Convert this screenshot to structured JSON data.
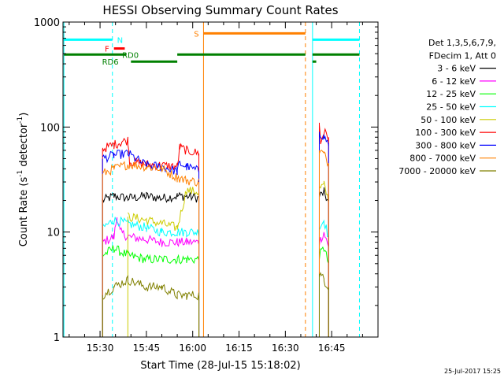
{
  "chart_data": {
    "type": "line",
    "title": "HESSI Observing Summary Count Rates",
    "xlabel": "Start Time (28-Jul-15 15:18:02)",
    "ylabel_main": "Count Rate (s",
    "ylabel_sup1": "-1",
    "ylabel_mid": " detector",
    "ylabel_sup2": "-1",
    "ylabel_end": ")",
    "yscale": "log",
    "ylim": [
      1,
      1000
    ],
    "xlim_min": [
      18.0,
      120.0
    ],
    "x_unit": "minutes after 15:00",
    "x_ticks": [
      {
        "value": 30,
        "label": "15:30"
      },
      {
        "value": 45,
        "label": "15:45"
      },
      {
        "value": 60,
        "label": "16:00"
      },
      {
        "value": 75,
        "label": "16:15"
      },
      {
        "value": 90,
        "label": "16:30"
      },
      {
        "value": 105,
        "label": "16:45"
      }
    ],
    "y_ticks": [
      {
        "value": 1,
        "label": "1"
      },
      {
        "value": 10,
        "label": "10"
      },
      {
        "value": 100,
        "label": "100"
      },
      {
        "value": 1000,
        "label": "1000"
      }
    ],
    "legend_header": [
      "Det 1,3,5,6,7,9,",
      "FDecim 1, Att 0"
    ],
    "legend_position": "right",
    "series": [
      {
        "name": "3 - 6 keV",
        "color": "#000000",
        "segments": [
          [
            [
              30.8,
              20
            ],
            [
              34.5,
              22
            ],
            [
              39.0,
              21
            ],
            [
              45.0,
              22
            ],
            [
              50.0,
              21
            ],
            [
              55.0,
              22
            ],
            [
              58.0,
              22
            ],
            [
              62.0,
              21
            ]
          ],
          [
            [
              101.0,
              22
            ],
            [
              102.5,
              24
            ],
            [
              104.0,
              19
            ]
          ]
        ]
      },
      {
        "name": "6 - 12 keV",
        "color": "#ff00ff",
        "segments": [
          [
            [
              30.8,
              8
            ],
            [
              34.5,
              9
            ],
            [
              35.5,
              14
            ],
            [
              36.5,
              10
            ],
            [
              39.0,
              9
            ],
            [
              45.0,
              8.5
            ],
            [
              50.0,
              8
            ],
            [
              55.0,
              8
            ],
            [
              58.0,
              8
            ],
            [
              62.0,
              8
            ]
          ],
          [
            [
              101.0,
              8
            ],
            [
              102.5,
              10
            ],
            [
              104.0,
              7
            ]
          ]
        ]
      },
      {
        "name": "12 - 25 keV",
        "color": "#00ff00",
        "segments": [
          [
            [
              30.8,
              6
            ],
            [
              34.5,
              7
            ],
            [
              39.0,
              6
            ],
            [
              45.0,
              5.5
            ],
            [
              50.0,
              5.5
            ],
            [
              55.0,
              5.5
            ],
            [
              58.0,
              5.5
            ],
            [
              62.0,
              5.5
            ]
          ],
          [
            [
              101.0,
              6
            ],
            [
              102.5,
              7
            ],
            [
              104.0,
              5
            ]
          ]
        ]
      },
      {
        "name": "25 - 50 keV",
        "color": "#00ffff",
        "segments": [
          [
            [
              30.8,
              11
            ],
            [
              34.5,
              13
            ],
            [
              39.0,
              12
            ],
            [
              45.0,
              11
            ],
            [
              50.0,
              10
            ],
            [
              55.0,
              10
            ],
            [
              58.0,
              10
            ],
            [
              62.0,
              10
            ]
          ],
          [
            [
              101.0,
              11
            ],
            [
              102.5,
              13
            ],
            [
              104.0,
              9
            ]
          ]
        ]
      },
      {
        "name": "50 - 100 keV",
        "color": "#cccc00",
        "segments": [
          [
            [
              39.0,
              14
            ],
            [
              45.0,
              13
            ],
            [
              50.0,
              12
            ],
            [
              55.0,
              11
            ],
            [
              58.0,
              25
            ],
            [
              62.0,
              24
            ]
          ],
          [
            [
              101.0,
              26
            ],
            [
              102.5,
              28
            ],
            [
              104.0,
              20
            ]
          ]
        ]
      },
      {
        "name": "100 - 300 keV",
        "color": "#ff0000",
        "segments": [
          [
            [
              30.8,
              62
            ],
            [
              34.5,
              68
            ],
            [
              37.0,
              72
            ],
            [
              39.0,
              75
            ],
            [
              39.6,
              47
            ],
            [
              45.0,
              44
            ],
            [
              50.0,
              43
            ],
            [
              55.0,
              42
            ],
            [
              55.8,
              64
            ],
            [
              58.0,
              60
            ],
            [
              62.0,
              56
            ]
          ],
          [
            [
              101.0,
              110
            ],
            [
              101.4,
              70
            ],
            [
              102.5,
              90
            ],
            [
              104.0,
              80
            ]
          ]
        ]
      },
      {
        "name": "300 - 800 keV",
        "color": "#0000ff",
        "segments": [
          [
            [
              30.8,
              50
            ],
            [
              34.5,
              54
            ],
            [
              39.0,
              56
            ],
            [
              45.0,
              43
            ],
            [
              50.0,
              42
            ],
            [
              55.0,
              38
            ],
            [
              55.8,
              45
            ],
            [
              58.0,
              42
            ],
            [
              62.0,
              38
            ]
          ],
          [
            [
              101.0,
              90
            ],
            [
              102.5,
              80
            ],
            [
              104.0,
              70
            ]
          ]
        ]
      },
      {
        "name": "800 - 7000 keV",
        "color": "#ff8000",
        "segments": [
          [
            [
              30.8,
              36
            ],
            [
              34.5,
              40
            ],
            [
              39.0,
              44
            ],
            [
              45.0,
              42
            ],
            [
              50.0,
              40
            ],
            [
              55.0,
              33
            ],
            [
              58.0,
              31
            ],
            [
              62.0,
              30
            ]
          ],
          [
            [
              101.0,
              60
            ],
            [
              102.5,
              55
            ],
            [
              104.0,
              45
            ]
          ]
        ]
      },
      {
        "name": "7000 - 20000 keV",
        "color": "#808000",
        "segments": [
          [
            [
              30.8,
              2.5
            ],
            [
              34.5,
              3
            ],
            [
              39.0,
              3.5
            ],
            [
              45.0,
              3
            ],
            [
              50.0,
              3
            ],
            [
              55.0,
              2.5
            ],
            [
              58.0,
              2.5
            ],
            [
              62.0,
              2.5
            ]
          ],
          [
            [
              101.0,
              4
            ],
            [
              102.5,
              3.5
            ],
            [
              104.0,
              3
            ]
          ]
        ]
      }
    ],
    "vertical_lines": [
      {
        "x": 18.3,
        "color": "#00ffff",
        "style": "solid"
      },
      {
        "x": 34.0,
        "color": "#00ffff",
        "style": "dashed"
      },
      {
        "x": 63.5,
        "color": "#ff8000",
        "style": "solid"
      },
      {
        "x": 96.5,
        "color": "#ff8000",
        "style": "dashed"
      },
      {
        "x": 98.8,
        "color": "#00ffff",
        "style": "solid"
      },
      {
        "x": 114.0,
        "color": "#00ffff",
        "style": "dashed"
      }
    ],
    "flags": [
      {
        "label": "N",
        "color": "#00ffff",
        "y": 680,
        "segments": [
          [
            18.3,
            34.0
          ],
          [
            98.8,
            114.0
          ]
        ],
        "label_x": 35.5,
        "label_side": "right"
      },
      {
        "label": "S",
        "color": "#ff8000",
        "y": 780,
        "segments": [
          [
            63.5,
            96.5
          ]
        ],
        "label_x": 62.0,
        "label_side": "left"
      },
      {
        "label": "F",
        "color": "#ff0000",
        "y": 560,
        "segments": [
          [
            34.5,
            38.0
          ]
        ],
        "label_x": 33.0,
        "label_side": "left"
      },
      {
        "label": "RD0",
        "color": "#008000",
        "y": 490,
        "segments": [
          [
            18.3,
            38.5
          ],
          [
            55.0,
            96.5
          ],
          [
            98.8,
            114.0
          ]
        ],
        "label_x": 42.5,
        "label_side": "left"
      },
      {
        "label": "RD6",
        "color": "#008000",
        "y": 420,
        "segments": [
          [
            40.0,
            55.0
          ],
          [
            98.8,
            100.0
          ]
        ],
        "label_x": 36.0,
        "label_side": "left"
      }
    ]
  },
  "footer_date": "25-Jul-2017 15:25"
}
